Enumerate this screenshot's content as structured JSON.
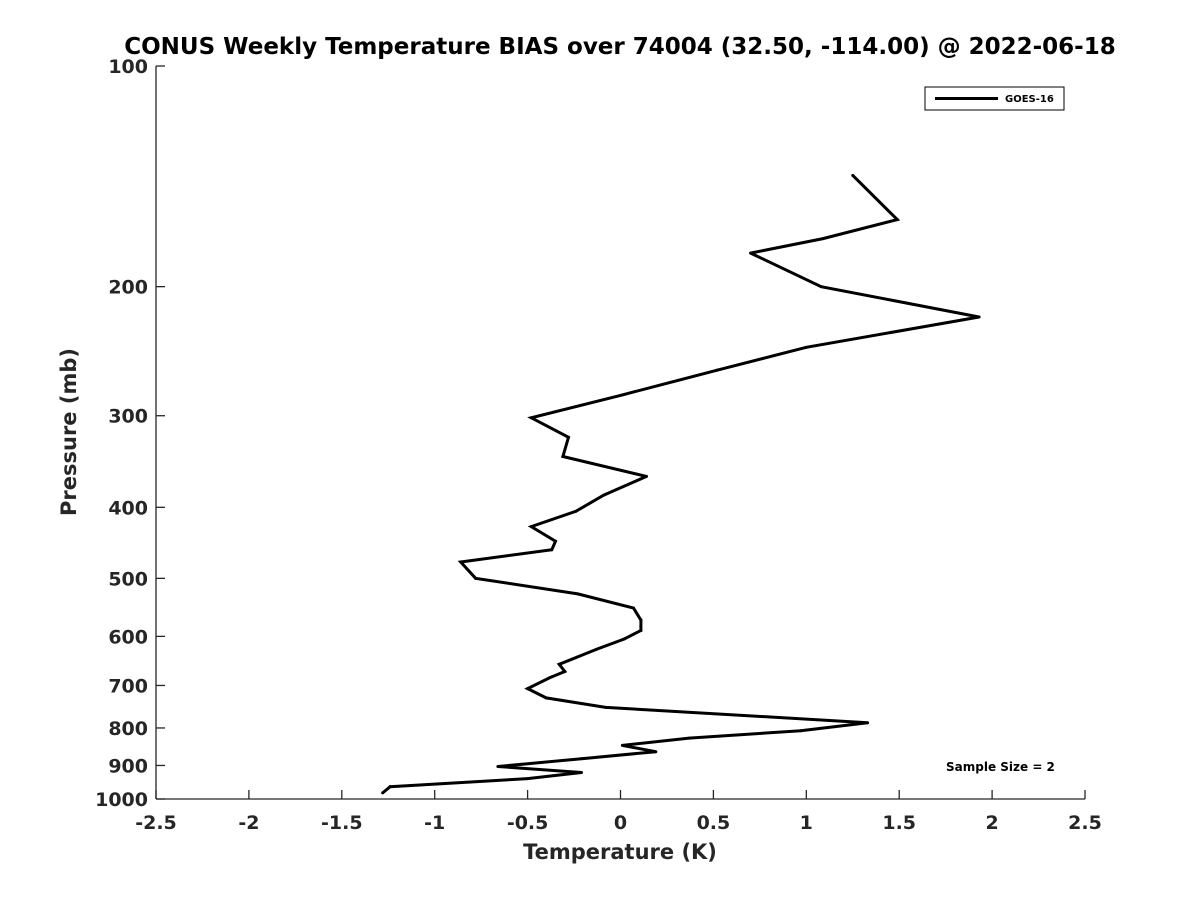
{
  "chart_data": {
    "type": "line",
    "title": "CONUS Weekly Temperature BIAS over 74004 (32.50, -114.00) @ 2022-06-18",
    "xlabel": "Temperature (K)",
    "ylabel": "Pressure (mb)",
    "xlim": [
      -2.5,
      2.5
    ],
    "ylim": [
      100,
      1000
    ],
    "y_scale": "log",
    "y_reversed": true,
    "grid": false,
    "legend_position": "top-right",
    "x_ticks": [
      {
        "value": -2.5,
        "label": "-2.5"
      },
      {
        "value": -2,
        "label": "-2"
      },
      {
        "value": -1.5,
        "label": "-1.5"
      },
      {
        "value": -1,
        "label": "-1"
      },
      {
        "value": -0.5,
        "label": "-0.5"
      },
      {
        "value": 0,
        "label": "0"
      },
      {
        "value": 0.5,
        "label": "0.5"
      },
      {
        "value": 1,
        "label": "1"
      },
      {
        "value": 1.5,
        "label": "1.5"
      },
      {
        "value": 2,
        "label": "2"
      },
      {
        "value": 2.5,
        "label": "2.5"
      }
    ],
    "y_ticks": [
      {
        "value": 100,
        "label": "100"
      },
      {
        "value": 200,
        "label": "200"
      },
      {
        "value": 300,
        "label": "300"
      },
      {
        "value": 400,
        "label": "400"
      },
      {
        "value": 500,
        "label": "500"
      },
      {
        "value": 600,
        "label": "600"
      },
      {
        "value": 700,
        "label": "700"
      },
      {
        "value": 800,
        "label": "800"
      },
      {
        "value": 900,
        "label": "900"
      },
      {
        "value": 1000,
        "label": "1000"
      }
    ],
    "series": [
      {
        "name": "GOES-16",
        "color": "#000000",
        "points": [
          {
            "x": 1.25,
            "y": 141
          },
          {
            "x": 1.49,
            "y": 162
          },
          {
            "x": 1.09,
            "y": 172
          },
          {
            "x": 0.7,
            "y": 180
          },
          {
            "x": 1.08,
            "y": 200
          },
          {
            "x": 1.93,
            "y": 220
          },
          {
            "x": 1.0,
            "y": 242
          },
          {
            "x": 0.52,
            "y": 260
          },
          {
            "x": 0.01,
            "y": 281
          },
          {
            "x": -0.48,
            "y": 302
          },
          {
            "x": -0.28,
            "y": 321
          },
          {
            "x": -0.31,
            "y": 341
          },
          {
            "x": 0.14,
            "y": 363
          },
          {
            "x": -0.09,
            "y": 385
          },
          {
            "x": -0.24,
            "y": 405
          },
          {
            "x": -0.48,
            "y": 425
          },
          {
            "x": -0.35,
            "y": 445
          },
          {
            "x": -0.37,
            "y": 457
          },
          {
            "x": -0.86,
            "y": 475
          },
          {
            "x": -0.78,
            "y": 500
          },
          {
            "x": -0.23,
            "y": 525
          },
          {
            "x": 0.07,
            "y": 549
          },
          {
            "x": 0.11,
            "y": 570
          },
          {
            "x": 0.11,
            "y": 589
          },
          {
            "x": 0.02,
            "y": 605
          },
          {
            "x": -0.13,
            "y": 625
          },
          {
            "x": -0.33,
            "y": 655
          },
          {
            "x": -0.3,
            "y": 670
          },
          {
            "x": -0.38,
            "y": 683
          },
          {
            "x": -0.5,
            "y": 707
          },
          {
            "x": -0.4,
            "y": 728
          },
          {
            "x": -0.08,
            "y": 750
          },
          {
            "x": 1.33,
            "y": 787
          },
          {
            "x": 0.97,
            "y": 807
          },
          {
            "x": 0.37,
            "y": 826
          },
          {
            "x": 0.01,
            "y": 845
          },
          {
            "x": 0.19,
            "y": 862
          },
          {
            "x": -0.21,
            "y": 881
          },
          {
            "x": -0.66,
            "y": 903
          },
          {
            "x": -0.21,
            "y": 920
          },
          {
            "x": -0.5,
            "y": 938
          },
          {
            "x": -1.24,
            "y": 962
          },
          {
            "x": -1.28,
            "y": 981
          }
        ]
      }
    ],
    "annotations": [
      {
        "text": "Sample Size = 2",
        "position": "bottom-right"
      }
    ]
  }
}
